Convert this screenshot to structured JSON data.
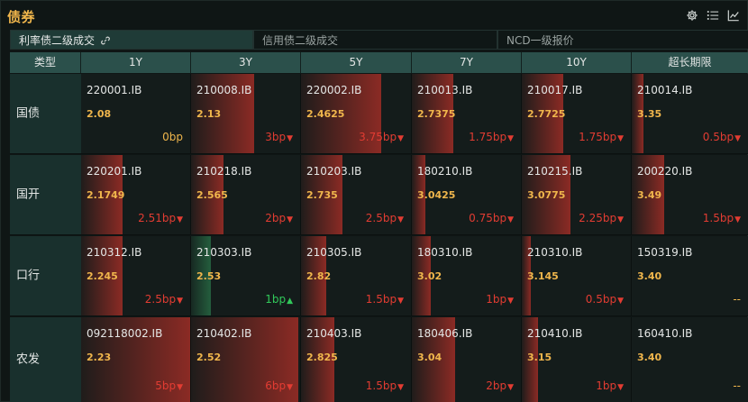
{
  "title": "债券",
  "icons": [
    "gear-icon",
    "list-icon",
    "chart-line-icon"
  ],
  "tabs": [
    {
      "label": "利率债二级成交",
      "active": true,
      "icon": "link-icon"
    },
    {
      "label": "信用债二级成交",
      "active": false
    },
    {
      "label": "NCD一级报价",
      "active": false
    }
  ],
  "columns": [
    "类型",
    "1Y",
    "3Y",
    "5Y",
    "7Y",
    "10Y",
    "超长期限"
  ],
  "rows": [
    {
      "type": "国债",
      "cells": [
        {
          "code": "220001.IB",
          "yield": "2.08",
          "change": "0bp",
          "dir": "flat",
          "bar": 0
        },
        {
          "code": "210008.IB",
          "yield": "2.13",
          "change": "3bp",
          "dir": "up",
          "bar": 0.58
        },
        {
          "code": "220002.IB",
          "yield": "2.4625",
          "change": "3.75bp",
          "dir": "up",
          "bar": 0.73
        },
        {
          "code": "210013.IB",
          "yield": "2.7375",
          "change": "1.75bp",
          "dir": "up",
          "bar": 0.38
        },
        {
          "code": "210017.IB",
          "yield": "2.7725",
          "change": "1.75bp",
          "dir": "up",
          "bar": 0.38
        },
        {
          "code": "210014.IB",
          "yield": "3.35",
          "change": "0.5bp",
          "dir": "up",
          "bar": 0.1
        }
      ]
    },
    {
      "type": "国开",
      "cells": [
        {
          "code": "220201.IB",
          "yield": "2.1749",
          "change": "2.51bp",
          "dir": "up",
          "bar": 0.38
        },
        {
          "code": "210218.IB",
          "yield": "2.565",
          "change": "2bp",
          "dir": "up",
          "bar": 0.3
        },
        {
          "code": "210203.IB",
          "yield": "2.735",
          "change": "2.5bp",
          "dir": "up",
          "bar": 0.38
        },
        {
          "code": "180210.IB",
          "yield": "3.0425",
          "change": "0.75bp",
          "dir": "up",
          "bar": 0.12
        },
        {
          "code": "210215.IB",
          "yield": "3.0775",
          "change": "2.25bp",
          "dir": "up",
          "bar": 0.45
        },
        {
          "code": "200220.IB",
          "yield": "3.49",
          "change": "1.5bp",
          "dir": "up",
          "bar": 0.28
        }
      ]
    },
    {
      "type": "口行",
      "cells": [
        {
          "code": "210312.IB",
          "yield": "2.245",
          "change": "2.5bp",
          "dir": "up",
          "bar": 0.38
        },
        {
          "code": "210303.IB",
          "yield": "2.53",
          "change": "1bp",
          "dir": "down",
          "bar": 0.18
        },
        {
          "code": "210305.IB",
          "yield": "2.82",
          "change": "1.5bp",
          "dir": "up",
          "bar": 0.23
        },
        {
          "code": "180310.IB",
          "yield": "3.02",
          "change": "1bp",
          "dir": "up",
          "bar": 0.17
        },
        {
          "code": "210310.IB",
          "yield": "3.145",
          "change": "0.5bp",
          "dir": "up",
          "bar": 0.08
        },
        {
          "code": "150319.IB",
          "yield": "3.40",
          "change": "--",
          "dir": "flat",
          "bar": 0
        }
      ]
    },
    {
      "type": "农发",
      "cells": [
        {
          "code": "092118002.IB",
          "yield": "2.23",
          "change": "5bp",
          "dir": "up",
          "bar": 1.0
        },
        {
          "code": "210402.IB",
          "yield": "2.52",
          "change": "6bp",
          "dir": "up",
          "bar": 0.98
        },
        {
          "code": "210403.IB",
          "yield": "2.825",
          "change": "1.5bp",
          "dir": "up",
          "bar": 0.3
        },
        {
          "code": "180406.IB",
          "yield": "3.04",
          "change": "2bp",
          "dir": "up",
          "bar": 0.4
        },
        {
          "code": "210410.IB",
          "yield": "3.15",
          "change": "1bp",
          "dir": "up",
          "bar": 0.15
        },
        {
          "code": "160410.IB",
          "yield": "3.40",
          "change": "--",
          "dir": "flat",
          "bar": 0
        }
      ]
    }
  ]
}
